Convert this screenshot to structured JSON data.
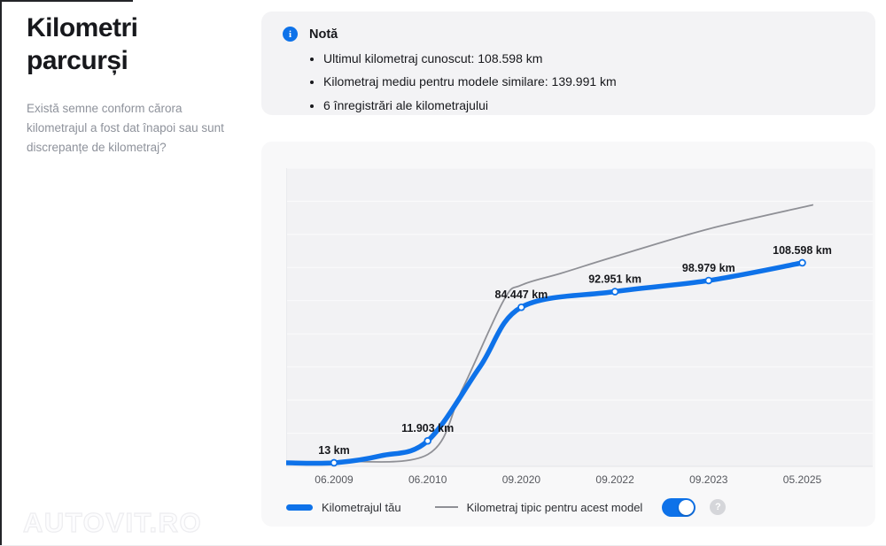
{
  "sidebar": {
    "title": "Kilometri parcurși",
    "question": "Există semne conform cărora kilometrajul a fost dat înapoi sau sunt discrepanțe de kilometraj?",
    "watermark": "AUTOVIT.RO"
  },
  "note": {
    "title": "Notă",
    "items": [
      "Ultimul kilometraj cunoscut: 108.598 km",
      "Kilometraj mediu pentru modele similare: 139.991 km",
      "6 înregistrări ale kilometrajului"
    ]
  },
  "legend": {
    "series1_label": "Kilometrajul tău",
    "series2_label": "Kilometraj tipic pentru acest model",
    "toggle_on": true,
    "help_glyph": "?"
  },
  "colors": {
    "accent_blue": "#0e72e9",
    "typical_gray": "#8f9096",
    "plot_bg": "#f2f2f4",
    "grid_line": "#fbfbfc",
    "axis_line": "#e3e4e7",
    "tick_text": "#56585e",
    "label_text": "#17181c"
  },
  "chart_data": {
    "type": "line",
    "title": "",
    "xlabel": "",
    "ylabel": "",
    "categories": [
      "06.2009",
      "06.2010",
      "09.2020",
      "09.2022",
      "09.2023",
      "05.2025"
    ],
    "ylim": [
      0,
      160000
    ],
    "grid": true,
    "y_axis_hidden": true,
    "legend_position": "bottom",
    "series": [
      {
        "name": "Kilometrajul tău",
        "color": "#0e72e9",
        "values": [
          13,
          11903,
          84447,
          92951,
          98979,
          108598
        ],
        "point_labels": [
          "13 km",
          "11.903 km",
          "84.447 km",
          "92.951 km",
          "98.979 km",
          "108.598 km"
        ],
        "smooth_anchors": [
          [
            -0.51,
            13
          ],
          [
            0,
            13
          ],
          [
            0.5,
            3800
          ],
          [
            1,
            11903
          ],
          [
            1.556,
            52000
          ],
          [
            2,
            84447
          ],
          [
            3,
            92951
          ],
          [
            4,
            98979
          ],
          [
            5,
            108598
          ]
        ]
      },
      {
        "name": "Kilometraj tipic pentru acest model",
        "color": "#8f9096",
        "estimated": true,
        "end_value": 139991,
        "smooth_anchors": [
          [
            -0.51,
            300
          ],
          [
            0,
            800
          ],
          [
            1,
            4500
          ],
          [
            1.37,
            40000
          ],
          [
            1.81,
            88000
          ],
          [
            2,
            96500
          ],
          [
            2.43,
            103000
          ],
          [
            3,
            112000
          ],
          [
            4,
            127000
          ],
          [
            5.11,
            139991
          ]
        ]
      }
    ]
  }
}
